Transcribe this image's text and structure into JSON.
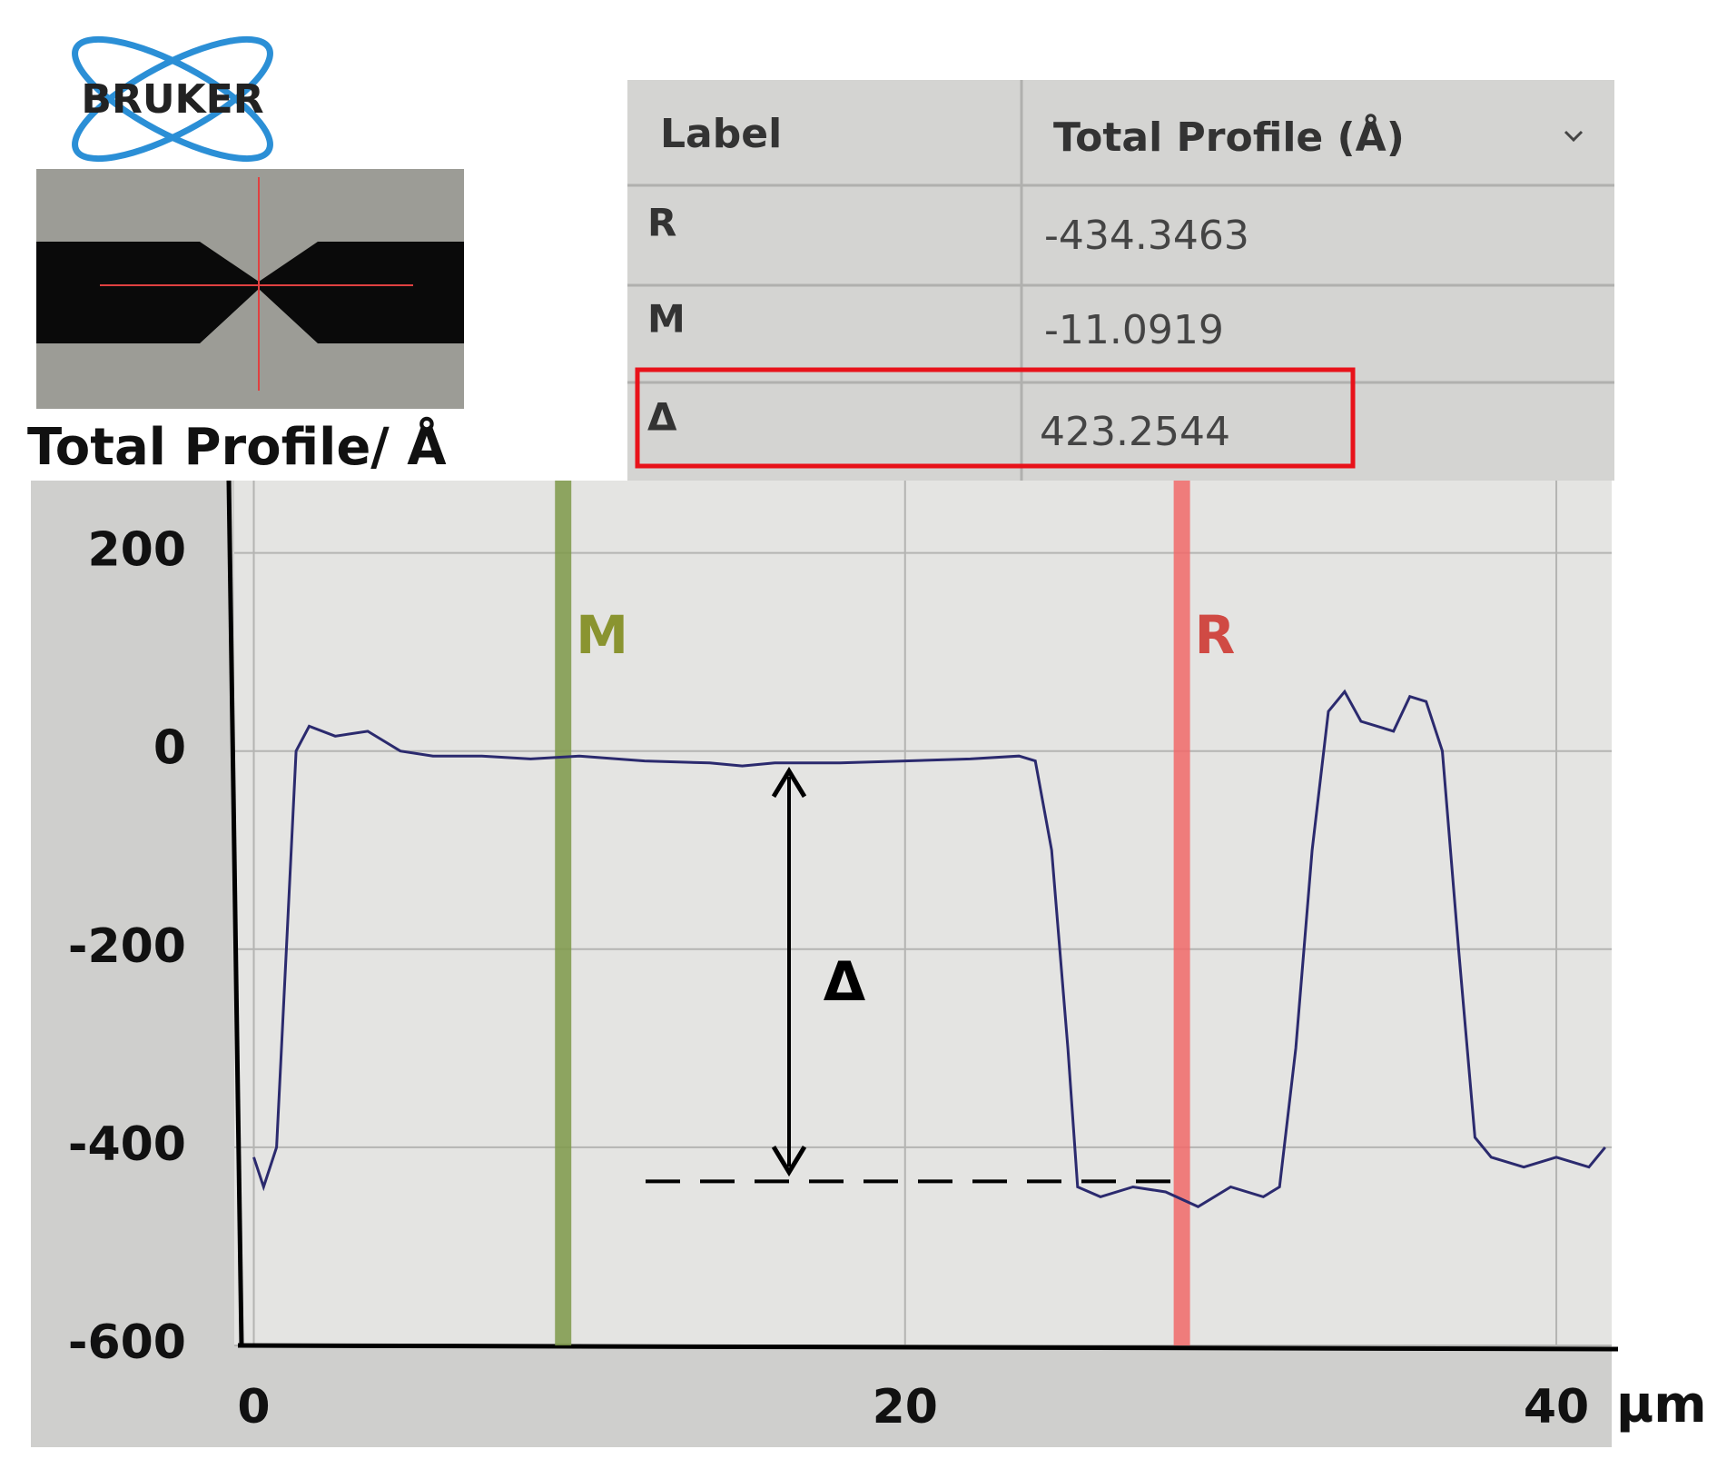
{
  "logo": {
    "text": "BRUKER"
  },
  "table": {
    "columns": [
      "Label",
      "Total Profile (Å)"
    ],
    "rows": [
      [
        "R",
        "-434.3463"
      ],
      [
        "M",
        "-11.0919"
      ],
      [
        "Δ",
        "423.2544"
      ]
    ]
  },
  "chart_data": {
    "type": "line",
    "title": "Total Profile/ Å",
    "xlabel": "µm",
    "x": [
      0,
      0.3,
      0.7,
      1.0,
      1.3,
      1.7,
      2.5,
      3.5,
      4.5,
      5.5,
      7,
      8.5,
      10,
      12,
      14,
      15,
      16,
      18,
      20,
      22,
      23.5,
      24,
      24.5,
      25,
      25.3,
      26,
      27,
      28,
      29,
      30,
      31,
      31.5,
      32,
      32.5,
      33,
      33.5,
      34,
      35,
      35.5,
      36,
      36.5,
      37,
      37.5,
      38,
      39,
      40,
      41,
      41.5
    ],
    "values": [
      -410,
      -440,
      -400,
      -200,
      0,
      25,
      15,
      20,
      0,
      -5,
      -5,
      -8,
      -5,
      -10,
      -12,
      -15,
      -12,
      -12,
      -10,
      -8,
      -5,
      -10,
      -100,
      -300,
      -440,
      -450,
      -440,
      -445,
      -460,
      -440,
      -450,
      -440,
      -300,
      -100,
      40,
      60,
      30,
      20,
      55,
      50,
      0,
      -200,
      -390,
      -410,
      -420,
      -410,
      -420,
      -400
    ],
    "color": "#2b2a6e",
    "xlim": [
      -0.6,
      41.7
    ],
    "ylim": [
      -600,
      273
    ],
    "xticks": [
      0,
      20,
      40
    ],
    "yticks": [
      200,
      0,
      -200,
      -400,
      -600
    ],
    "grid": true,
    "cursors": [
      {
        "label": "M",
        "x": 9.5,
        "color": "#7f9a4a",
        "text_color": "#8a9430"
      },
      {
        "label": "R",
        "x": 28.5,
        "color": "#f26a6a",
        "text_color": "#d04a44"
      }
    ],
    "annotation": "Δ"
  }
}
